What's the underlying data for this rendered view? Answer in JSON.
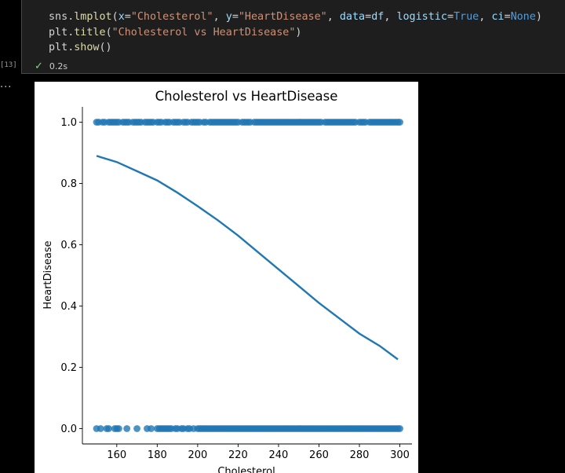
{
  "cell": {
    "execution_count": "[13]",
    "status_icon": "check-icon",
    "duration": "0.2s",
    "output_prompt": "...",
    "code_lines": [
      [
        {
          "text": "sns",
          "c": ""
        },
        {
          "text": ".",
          "c": ""
        },
        {
          "text": "lmplot",
          "c": "tk-fn"
        },
        {
          "text": "(",
          "c": ""
        },
        {
          "text": "x",
          "c": "tk-kw"
        },
        {
          "text": "=",
          "c": ""
        },
        {
          "text": "\"Cholesterol\"",
          "c": "tk-str"
        },
        {
          "text": ", ",
          "c": ""
        },
        {
          "text": "y",
          "c": "tk-kw"
        },
        {
          "text": "=",
          "c": ""
        },
        {
          "text": "\"HeartDisease\"",
          "c": "tk-str"
        },
        {
          "text": ", ",
          "c": ""
        },
        {
          "text": "data",
          "c": "tk-kw"
        },
        {
          "text": "=",
          "c": ""
        },
        {
          "text": "df",
          "c": "tk-kw"
        },
        {
          "text": ", ",
          "c": ""
        },
        {
          "text": "logistic",
          "c": "tk-kw"
        },
        {
          "text": "=",
          "c": ""
        },
        {
          "text": "True",
          "c": "tk-const"
        },
        {
          "text": ", ",
          "c": ""
        },
        {
          "text": "ci",
          "c": "tk-kw"
        },
        {
          "text": "=",
          "c": ""
        },
        {
          "text": "None",
          "c": "tk-const"
        },
        {
          "text": ")",
          "c": ""
        }
      ],
      [
        {
          "text": "plt",
          "c": ""
        },
        {
          "text": ".",
          "c": ""
        },
        {
          "text": "title",
          "c": "tk-fn"
        },
        {
          "text": "(",
          "c": ""
        },
        {
          "text": "\"Cholesterol vs HeartDisease\"",
          "c": "tk-str"
        },
        {
          "text": ")",
          "c": ""
        }
      ],
      [
        {
          "text": "plt",
          "c": ""
        },
        {
          "text": ".",
          "c": ""
        },
        {
          "text": "show",
          "c": "tk-fn"
        },
        {
          "text": "()",
          "c": ""
        }
      ]
    ]
  },
  "chart_data": {
    "type": "scatter",
    "title": "Cholesterol vs HeartDisease",
    "xlabel": "Cholesterol",
    "ylabel": "HeartDisease",
    "xlim": [
      143,
      306
    ],
    "ylim": [
      -0.05,
      1.05
    ],
    "xticks": [
      160,
      180,
      200,
      220,
      240,
      260,
      280,
      300
    ],
    "yticks": [
      0.0,
      0.2,
      0.4,
      0.6,
      0.8,
      1.0
    ],
    "grid": false,
    "point_color": "#1f77b4",
    "series": [
      {
        "kind": "points",
        "y": 1,
        "x": [
          150,
          151,
          153,
          154,
          156,
          157,
          158,
          159,
          160,
          161,
          163,
          164,
          165,
          166,
          168,
          169,
          170,
          171,
          172,
          174,
          175,
          176,
          177,
          178,
          180,
          181,
          182,
          184,
          185,
          186,
          188,
          189,
          190,
          191,
          193,
          194,
          195,
          197,
          198,
          199,
          200,
          201,
          203,
          204,
          206,
          207,
          208,
          209,
          210,
          211,
          212,
          213,
          214,
          215,
          216,
          217,
          218,
          219,
          220,
          222,
          223,
          224,
          225,
          226,
          228,
          229,
          230,
          231,
          232,
          233,
          234,
          235,
          236,
          237,
          238,
          239,
          240,
          241,
          242,
          243,
          244,
          245,
          246,
          247,
          248,
          249,
          250,
          251,
          252,
          253,
          254,
          255,
          256,
          257,
          258,
          259,
          260,
          261,
          263,
          264,
          265,
          266,
          267,
          268,
          269,
          270,
          271,
          272,
          273,
          274,
          275,
          276,
          277,
          278,
          280,
          281,
          282,
          283,
          285,
          286,
          287,
          288,
          289,
          290,
          291,
          292,
          293,
          294,
          295,
          296,
          297,
          298,
          299,
          300
        ]
      },
      {
        "kind": "points",
        "y": 0,
        "x": [
          150,
          152,
          155,
          156,
          159,
          160,
          161,
          165,
          170,
          175,
          177,
          180,
          181,
          182,
          183,
          184,
          185,
          186,
          187,
          189,
          190,
          192,
          193,
          195,
          196,
          198,
          200,
          201,
          202,
          203,
          204,
          205,
          206,
          207,
          208,
          209,
          210,
          211,
          212,
          213,
          214,
          215,
          216,
          217,
          218,
          219,
          220,
          221,
          222,
          223,
          224,
          225,
          226,
          227,
          228,
          229,
          230,
          231,
          232,
          233,
          234,
          235,
          236,
          237,
          238,
          239,
          240,
          241,
          242,
          243,
          244,
          245,
          246,
          247,
          248,
          249,
          250,
          251,
          252,
          253,
          254,
          255,
          256,
          257,
          258,
          259,
          260,
          261,
          262,
          263,
          264,
          265,
          266,
          267,
          268,
          269,
          270,
          271,
          272,
          273,
          274,
          275,
          276,
          277,
          278,
          279,
          280,
          281,
          282,
          283,
          284,
          285,
          286,
          287,
          288,
          289,
          290,
          291,
          292,
          293,
          294,
          295,
          296,
          297,
          298,
          299,
          300
        ]
      },
      {
        "kind": "line",
        "x": [
          150,
          160,
          170,
          180,
          190,
          200,
          210,
          220,
          230,
          240,
          250,
          260,
          270,
          280,
          290,
          299
        ],
        "y": [
          0.89,
          0.87,
          0.84,
          0.81,
          0.77,
          0.726,
          0.68,
          0.63,
          0.575,
          0.52,
          0.465,
          0.41,
          0.36,
          0.31,
          0.27,
          0.226
        ]
      }
    ]
  }
}
